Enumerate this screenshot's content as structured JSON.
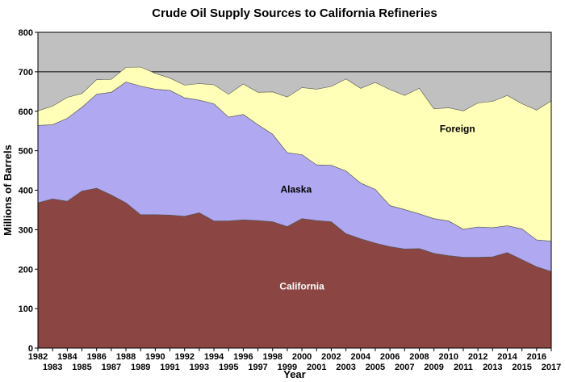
{
  "chart_data": {
    "type": "area",
    "stacked": true,
    "title": "Crude Oil Supply Sources to California Refineries",
    "xlabel": "Year",
    "ylabel": "Millions of Barrels",
    "ylim": [
      0,
      800
    ],
    "yticks": [
      0,
      100,
      200,
      300,
      400,
      500,
      600,
      700,
      800
    ],
    "grid": "horizontal",
    "background_color": "#c0c0c0",
    "x": [
      1982,
      1983,
      1984,
      1985,
      1986,
      1987,
      1988,
      1989,
      1990,
      1991,
      1992,
      1993,
      1994,
      1995,
      1996,
      1997,
      1998,
      1999,
      2000,
      2001,
      2002,
      2003,
      2004,
      2005,
      2006,
      2007,
      2008,
      2009,
      2010,
      2011,
      2012,
      2013,
      2014,
      2015,
      2016,
      2017
    ],
    "xtick_labels": [
      "1982",
      "1983",
      "1984",
      "1985",
      "1986",
      "1987",
      "1988",
      "1989",
      "1990",
      "1991",
      "1992",
      "1993",
      "1994",
      "1995",
      "1996",
      "1997",
      "1998",
      "1999",
      "2000",
      "2001",
      "2002",
      "2003",
      "2004",
      "2005",
      "2006",
      "2007",
      "2008",
      "2009",
      "2010",
      "2011",
      "2012",
      "2013",
      "2014",
      "2015",
      "2016",
      "2017"
    ],
    "series": [
      {
        "name": "California",
        "color": "#8b4542",
        "values": [
          368,
          378,
          372,
          398,
          405,
          388,
          368,
          338,
          338,
          337,
          334,
          343,
          322,
          322,
          325,
          323,
          320,
          308,
          328,
          323,
          320,
          290,
          277,
          266,
          257,
          251,
          252,
          240,
          234,
          230,
          230,
          231,
          242,
          224,
          206,
          194
        ]
      },
      {
        "name": "Alaska",
        "color": "#b0a8f0",
        "values": [
          196,
          188,
          210,
          212,
          238,
          260,
          306,
          326,
          318,
          316,
          300,
          285,
          297,
          263,
          267,
          243,
          222,
          187,
          162,
          141,
          143,
          159,
          141,
          136,
          104,
          100,
          88,
          88,
          88,
          71,
          77,
          74,
          68,
          78,
          68,
          77
        ]
      },
      {
        "name": "Foreign",
        "color": "#ffffb8",
        "values": [
          37,
          47,
          53,
          35,
          37,
          33,
          37,
          48,
          40,
          31,
          32,
          42,
          48,
          58,
          77,
          82,
          107,
          141,
          170,
          192,
          200,
          233,
          240,
          271,
          294,
          289,
          318,
          278,
          287,
          300,
          314,
          320,
          330,
          317,
          329,
          355
        ]
      }
    ],
    "area_labels": [
      {
        "series": "California",
        "text": "California"
      },
      {
        "series": "Alaska",
        "text": "Alaska"
      },
      {
        "series": "Foreign",
        "text": "Foreign"
      }
    ]
  }
}
